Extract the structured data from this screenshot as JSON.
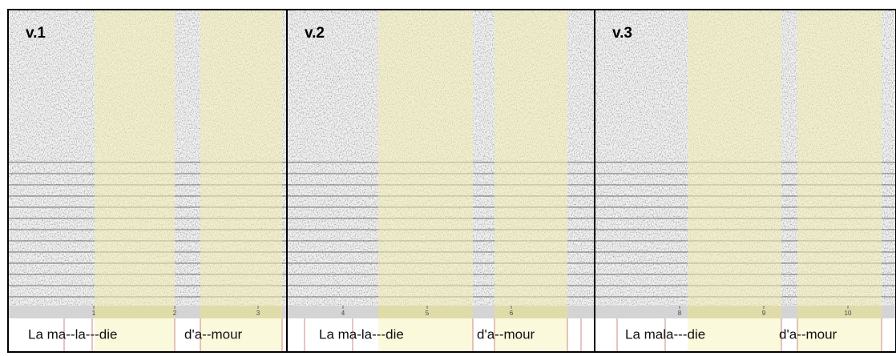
{
  "panels": [
    {
      "label": "v.1",
      "ticks": [
        1,
        2,
        3
      ],
      "phrase_1": "La ma--la---die",
      "phrase_2": "d'a--mour"
    },
    {
      "label": "v.2",
      "ticks": [
        4,
        5,
        6
      ],
      "phrase_1": "La ma-la---die",
      "phrase_2": "d'a--mour"
    },
    {
      "label": "v.3",
      "ticks": [
        8,
        9,
        10
      ],
      "phrase_1": "La mala---die",
      "phrase_2": "d'a--mour"
    }
  ]
}
